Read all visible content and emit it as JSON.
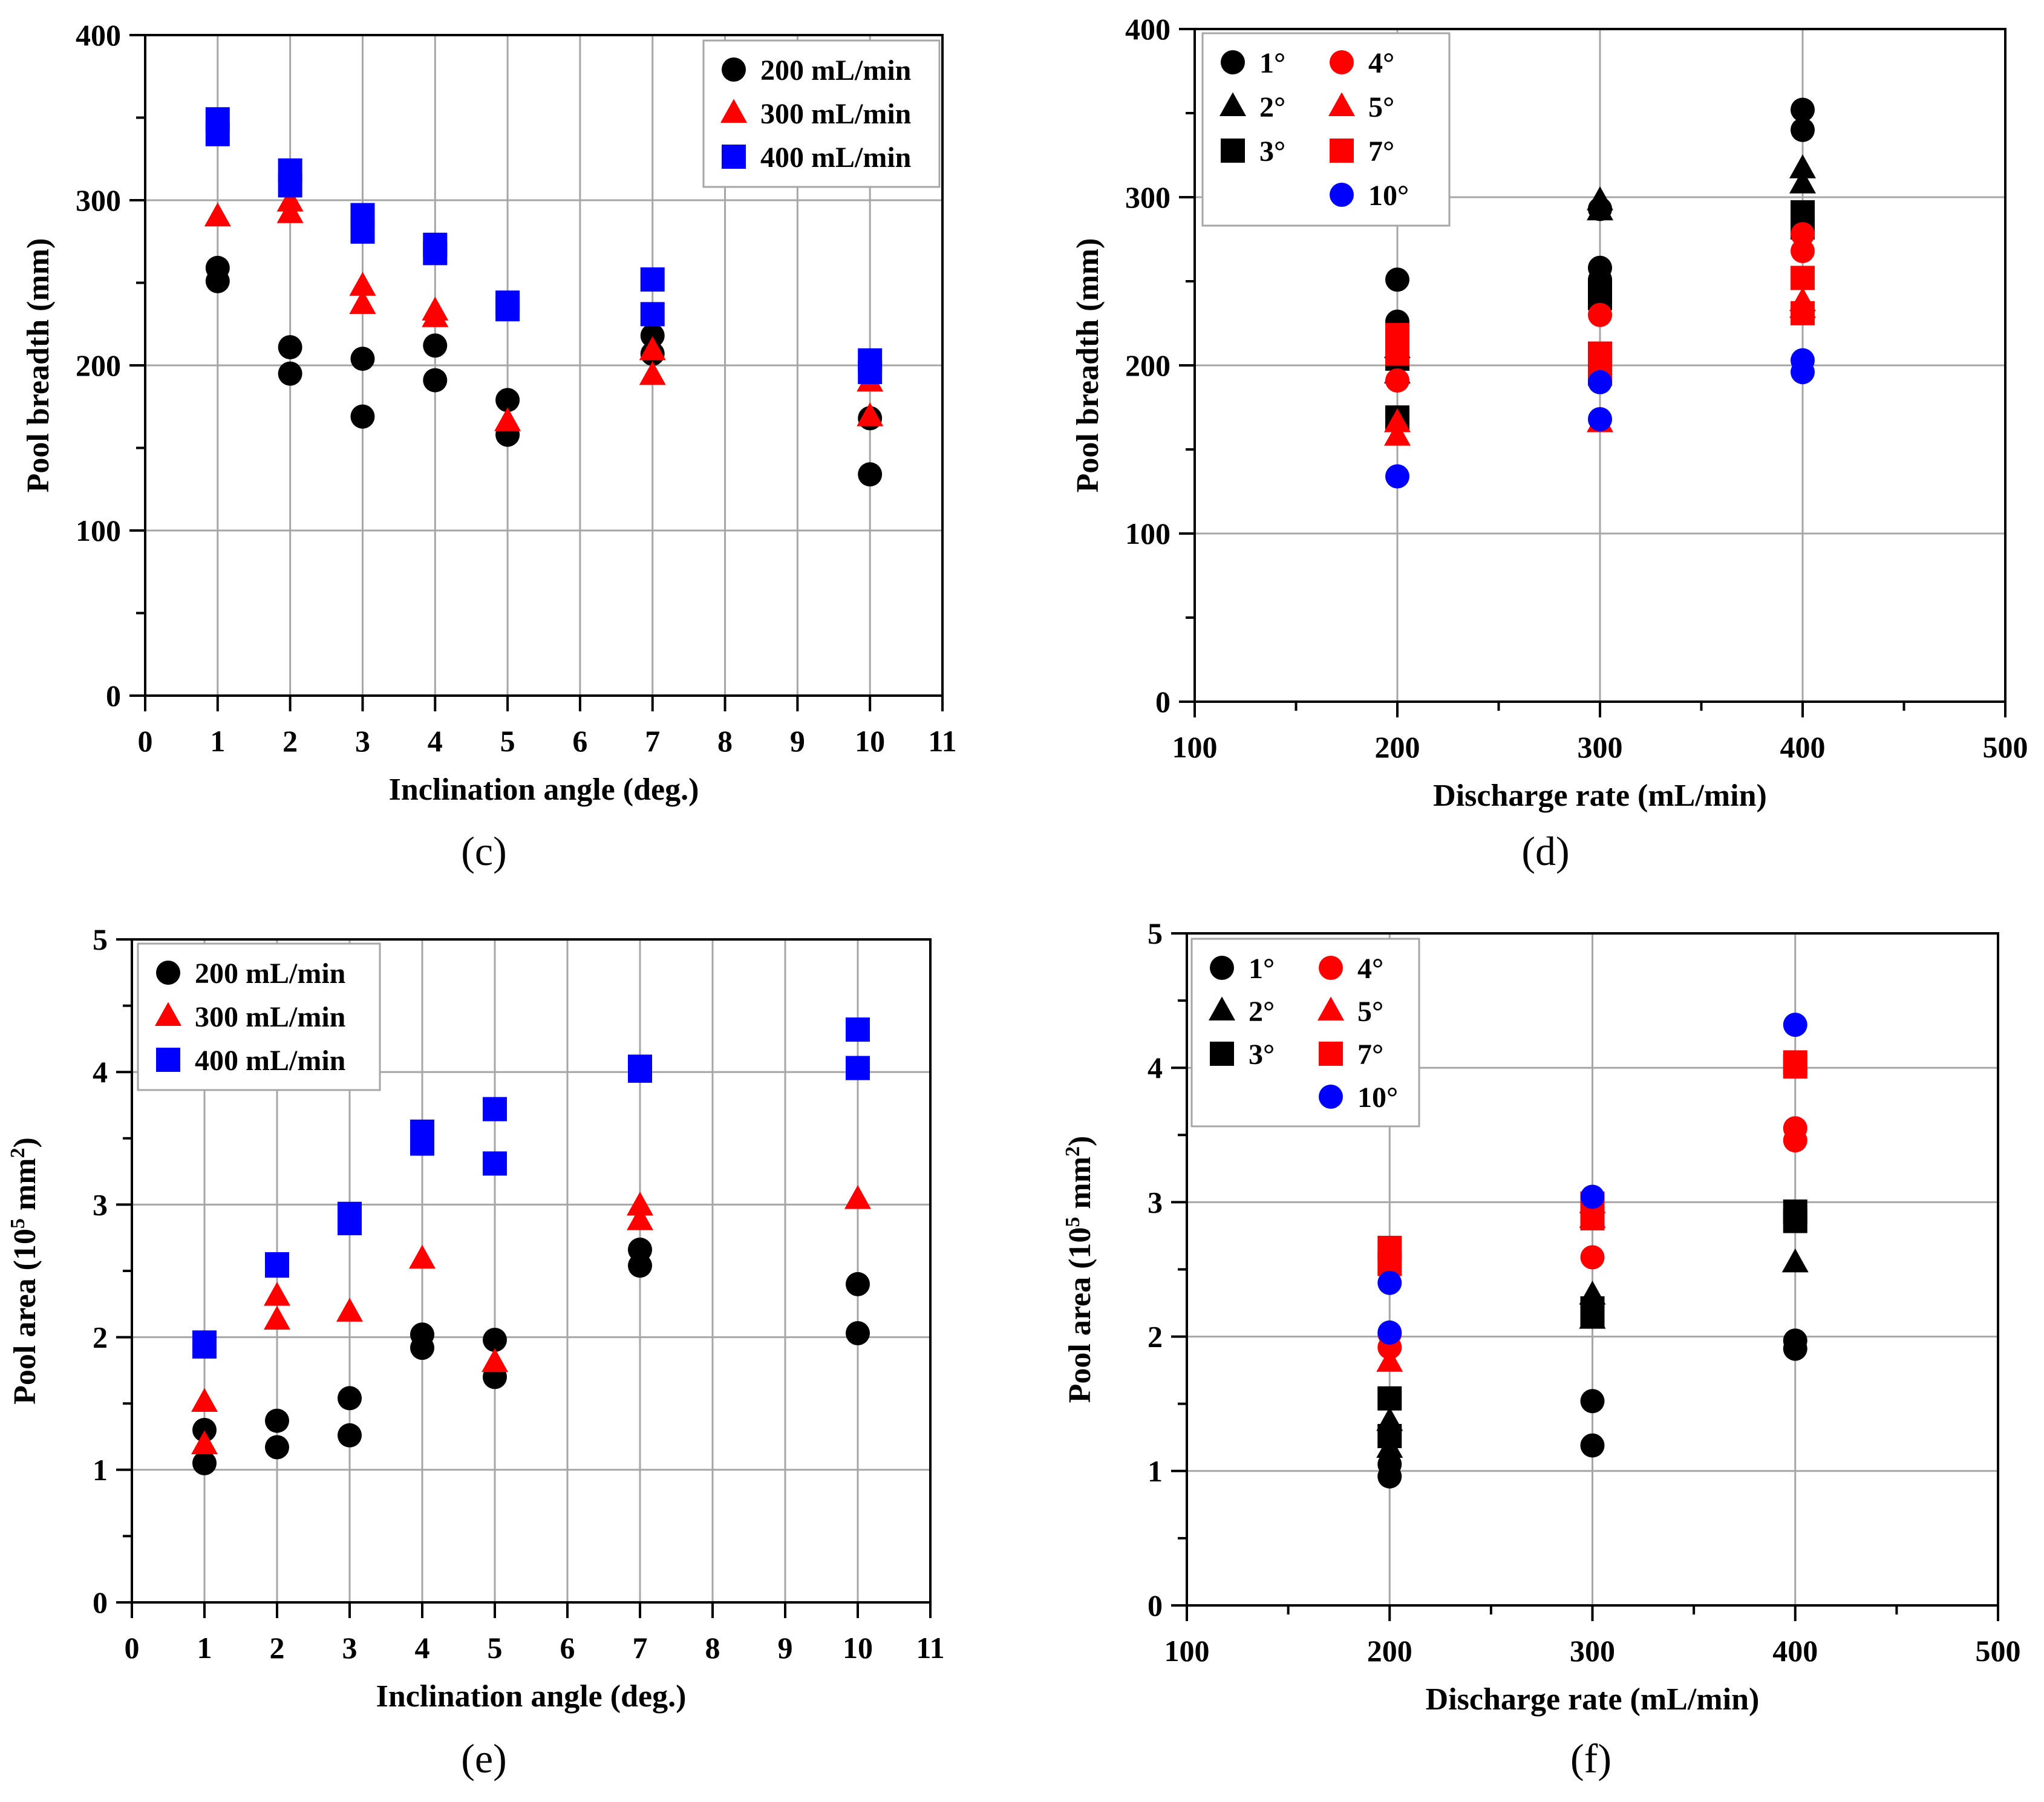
{
  "colors": {
    "black": "#000000",
    "red": "#ff0000",
    "blue": "#0000ff",
    "grid": "#a6a6a6"
  },
  "chart_data": [
    {
      "id": "c",
      "type": "scatter",
      "caption": "(c)",
      "xlabel": "Inclination angle (deg.)",
      "ylabel": "Pool breadth (mm)",
      "xlim": [
        0,
        11
      ],
      "ylim": [
        0,
        400
      ],
      "xticks": [
        0,
        1,
        2,
        3,
        4,
        5,
        6,
        7,
        8,
        9,
        10,
        11
      ],
      "yticks": [
        0,
        100,
        200,
        300,
        400
      ],
      "legend": "top-right",
      "series": [
        {
          "name": "200 mL/min",
          "color": "black",
          "marker": "circle",
          "points": [
            [
              1,
              259
            ],
            [
              1,
              251
            ],
            [
              2,
              211
            ],
            [
              2,
              195
            ],
            [
              3,
              204
            ],
            [
              3,
              169
            ],
            [
              4,
              212
            ],
            [
              4,
              191
            ],
            [
              5,
              179
            ],
            [
              5,
              158
            ],
            [
              7,
              218
            ],
            [
              7,
              207
            ],
            [
              10,
              168
            ],
            [
              10,
              134
            ]
          ]
        },
        {
          "name": "300 mL/min",
          "color": "red",
          "marker": "triangle",
          "points": [
            [
              1,
              290
            ],
            [
              2,
              299
            ],
            [
              2,
              292
            ],
            [
              3,
              248
            ],
            [
              3,
              237
            ],
            [
              4,
              233
            ],
            [
              4,
              229
            ],
            [
              5,
              166
            ],
            [
              7,
              209
            ],
            [
              7,
              194
            ],
            [
              10,
              190
            ],
            [
              10,
              169
            ]
          ]
        },
        {
          "name": "400 mL/min",
          "color": "blue",
          "marker": "square",
          "points": [
            [
              1,
              349
            ],
            [
              1,
              340
            ],
            [
              2,
              318
            ],
            [
              2,
              309
            ],
            [
              3,
              291
            ],
            [
              3,
              281
            ],
            [
              4,
              273
            ],
            [
              4,
              268
            ],
            [
              5,
              238
            ],
            [
              5,
              234
            ],
            [
              7,
              252
            ],
            [
              7,
              231
            ],
            [
              10,
              203
            ],
            [
              10,
              196
            ]
          ]
        }
      ]
    },
    {
      "id": "d",
      "type": "scatter",
      "caption": "(d)",
      "xlabel": "Discharge rate (mL/min)",
      "ylabel": "Pool breadth (mm)",
      "xlim": [
        100,
        500
      ],
      "ylim": [
        0,
        400
      ],
      "xticks": [
        100,
        200,
        300,
        400,
        500
      ],
      "yticks": [
        0,
        100,
        200,
        300,
        400
      ],
      "legend": "top-left",
      "series": [
        {
          "name": "1°",
          "color": "black",
          "marker": "circle",
          "points": [
            [
              200,
              251
            ],
            [
              200,
              226
            ],
            [
              300,
              258
            ],
            [
              300,
              251
            ],
            [
              300,
              245
            ],
            [
              300,
              236
            ],
            [
              300,
              293
            ],
            [
              400,
              352
            ],
            [
              400,
              340
            ]
          ]
        },
        {
          "name": "2°",
          "color": "black",
          "marker": "triangle",
          "points": [
            [
              200,
              210
            ],
            [
              200,
              195
            ],
            [
              300,
              298
            ],
            [
              300,
              292
            ],
            [
              400,
              317
            ],
            [
              400,
              308
            ]
          ]
        },
        {
          "name": "3°",
          "color": "black",
          "marker": "square",
          "points": [
            [
              200,
              204
            ],
            [
              200,
              169
            ],
            [
              300,
              244
            ],
            [
              300,
              240
            ],
            [
              400,
              291
            ],
            [
              400,
              282
            ]
          ]
        },
        {
          "name": "4°",
          "color": "red",
          "marker": "circle",
          "points": [
            [
              200,
              212
            ],
            [
              200,
              191
            ],
            [
              300,
              230
            ],
            [
              400,
              268
            ],
            [
              400,
              278
            ]
          ]
        },
        {
          "name": "5°",
          "color": "red",
          "marker": "triangle",
          "points": [
            [
              200,
              166
            ],
            [
              200,
              158
            ],
            [
              300,
              166
            ],
            [
              400,
              238
            ],
            [
              400,
              234
            ]
          ]
        },
        {
          "name": "7°",
          "color": "red",
          "marker": "square",
          "points": [
            [
              200,
              218
            ],
            [
              200,
              207
            ],
            [
              300,
              207
            ],
            [
              300,
              195
            ],
            [
              400,
              252
            ],
            [
              400,
              231
            ]
          ]
        },
        {
          "name": "10°",
          "color": "blue",
          "marker": "circle",
          "points": [
            [
              200,
              134
            ],
            [
              300,
              190
            ],
            [
              300,
              168
            ],
            [
              400,
              203
            ],
            [
              400,
              196
            ]
          ]
        }
      ]
    },
    {
      "id": "e",
      "type": "scatter",
      "caption": "(e)",
      "xlabel": "Inclination angle (deg.)",
      "ylabel_pre": "Pool area (10",
      "ylabel_sup": "5",
      "ylabel_mid": " mm",
      "ylabel_sup2": "2",
      "ylabel_post": ")",
      "xlim": [
        0,
        11
      ],
      "ylim": [
        0,
        5
      ],
      "xticks": [
        0,
        1,
        2,
        3,
        4,
        5,
        6,
        7,
        8,
        9,
        10,
        11
      ],
      "yticks": [
        0,
        1,
        2,
        3,
        4,
        5
      ],
      "legend": "top-left",
      "series": [
        {
          "name": "200 mL/min",
          "color": "black",
          "marker": "circle",
          "points": [
            [
              1,
              1.3
            ],
            [
              1,
              1.05
            ],
            [
              2,
              1.37
            ],
            [
              2,
              1.17
            ],
            [
              3,
              1.54
            ],
            [
              3,
              1.26
            ],
            [
              4,
              2.02
            ],
            [
              4,
              1.92
            ],
            [
              5,
              1.98
            ],
            [
              5,
              1.7
            ],
            [
              7,
              2.66
            ],
            [
              7,
              2.54
            ],
            [
              10,
              2.4
            ],
            [
              10,
              2.03
            ]
          ]
        },
        {
          "name": "300 mL/min",
          "color": "red",
          "marker": "triangle",
          "points": [
            [
              1,
              1.51
            ],
            [
              1,
              1.19
            ],
            [
              2,
              2.31
            ],
            [
              2,
              2.13
            ],
            [
              3,
              2.19
            ],
            [
              4,
              2.59
            ],
            [
              5,
              1.81
            ],
            [
              7,
              2.99
            ],
            [
              7,
              2.88
            ],
            [
              10,
              3.04
            ]
          ]
        },
        {
          "name": "400 mL/min",
          "color": "blue",
          "marker": "square",
          "points": [
            [
              1,
              1.96
            ],
            [
              1,
              1.93
            ],
            [
              2,
              2.55
            ],
            [
              2,
              2.54
            ],
            [
              3,
              2.93
            ],
            [
              3,
              2.86
            ],
            [
              4,
              3.55
            ],
            [
              4,
              3.46
            ],
            [
              5,
              3.72
            ],
            [
              5,
              3.31
            ],
            [
              7,
              4.04
            ],
            [
              7,
              4.01
            ],
            [
              10,
              4.32
            ],
            [
              10,
              4.03
            ]
          ]
        }
      ]
    },
    {
      "id": "f",
      "type": "scatter",
      "caption": "(f)",
      "xlabel": "Discharge rate (mL/min)",
      "ylabel_pre": "Pool area (10",
      "ylabel_sup": "5",
      "ylabel_mid": " mm",
      "ylabel_sup2": "2",
      "ylabel_post": ")",
      "xlim": [
        100,
        500
      ],
      "ylim": [
        0,
        5
      ],
      "xticks": [
        100,
        200,
        300,
        400,
        500
      ],
      "yticks": [
        0,
        1,
        2,
        3,
        4,
        5
      ],
      "legend": "top-left",
      "series": [
        {
          "name": "1°",
          "color": "black",
          "marker": "circle",
          "points": [
            [
              200,
              1.05
            ],
            [
              200,
              0.96
            ],
            [
              300,
              1.52
            ],
            [
              300,
              1.19
            ],
            [
              400,
              1.97
            ],
            [
              400,
              1.91
            ]
          ]
        },
        {
          "name": "2°",
          "color": "black",
          "marker": "triangle",
          "points": [
            [
              200,
              1.37
            ],
            [
              200,
              1.17
            ],
            [
              300,
              2.31
            ],
            [
              300,
              2.13
            ],
            [
              400,
              2.55
            ]
          ]
        },
        {
          "name": "3°",
          "color": "black",
          "marker": "square",
          "points": [
            [
              200,
              1.54
            ],
            [
              200,
              1.26
            ],
            [
              300,
              2.21
            ],
            [
              300,
              2.16
            ],
            [
              400,
              2.93
            ],
            [
              400,
              2.86
            ]
          ]
        },
        {
          "name": "4°",
          "color": "red",
          "marker": "circle",
          "points": [
            [
              200,
              2.02
            ],
            [
              200,
              1.92
            ],
            [
              300,
              2.59
            ],
            [
              400,
              3.55
            ],
            [
              400,
              3.46
            ]
          ]
        },
        {
          "name": "5°",
          "color": "red",
          "marker": "triangle",
          "points": [
            [
              200,
              1.81
            ],
            [
              300,
              2.99
            ],
            [
              300,
              2.88
            ]
          ]
        },
        {
          "name": "7°",
          "color": "red",
          "marker": "square",
          "points": [
            [
              200,
              2.66
            ],
            [
              200,
              2.54
            ],
            [
              300,
              2.99
            ],
            [
              300,
              2.88
            ],
            [
              400,
              4.04
            ],
            [
              400,
              4.01
            ]
          ]
        },
        {
          "name": "10°",
          "color": "blue",
          "marker": "circle",
          "points": [
            [
              200,
              2.4
            ],
            [
              200,
              2.03
            ],
            [
              300,
              3.04
            ],
            [
              400,
              4.32
            ]
          ]
        }
      ]
    }
  ]
}
